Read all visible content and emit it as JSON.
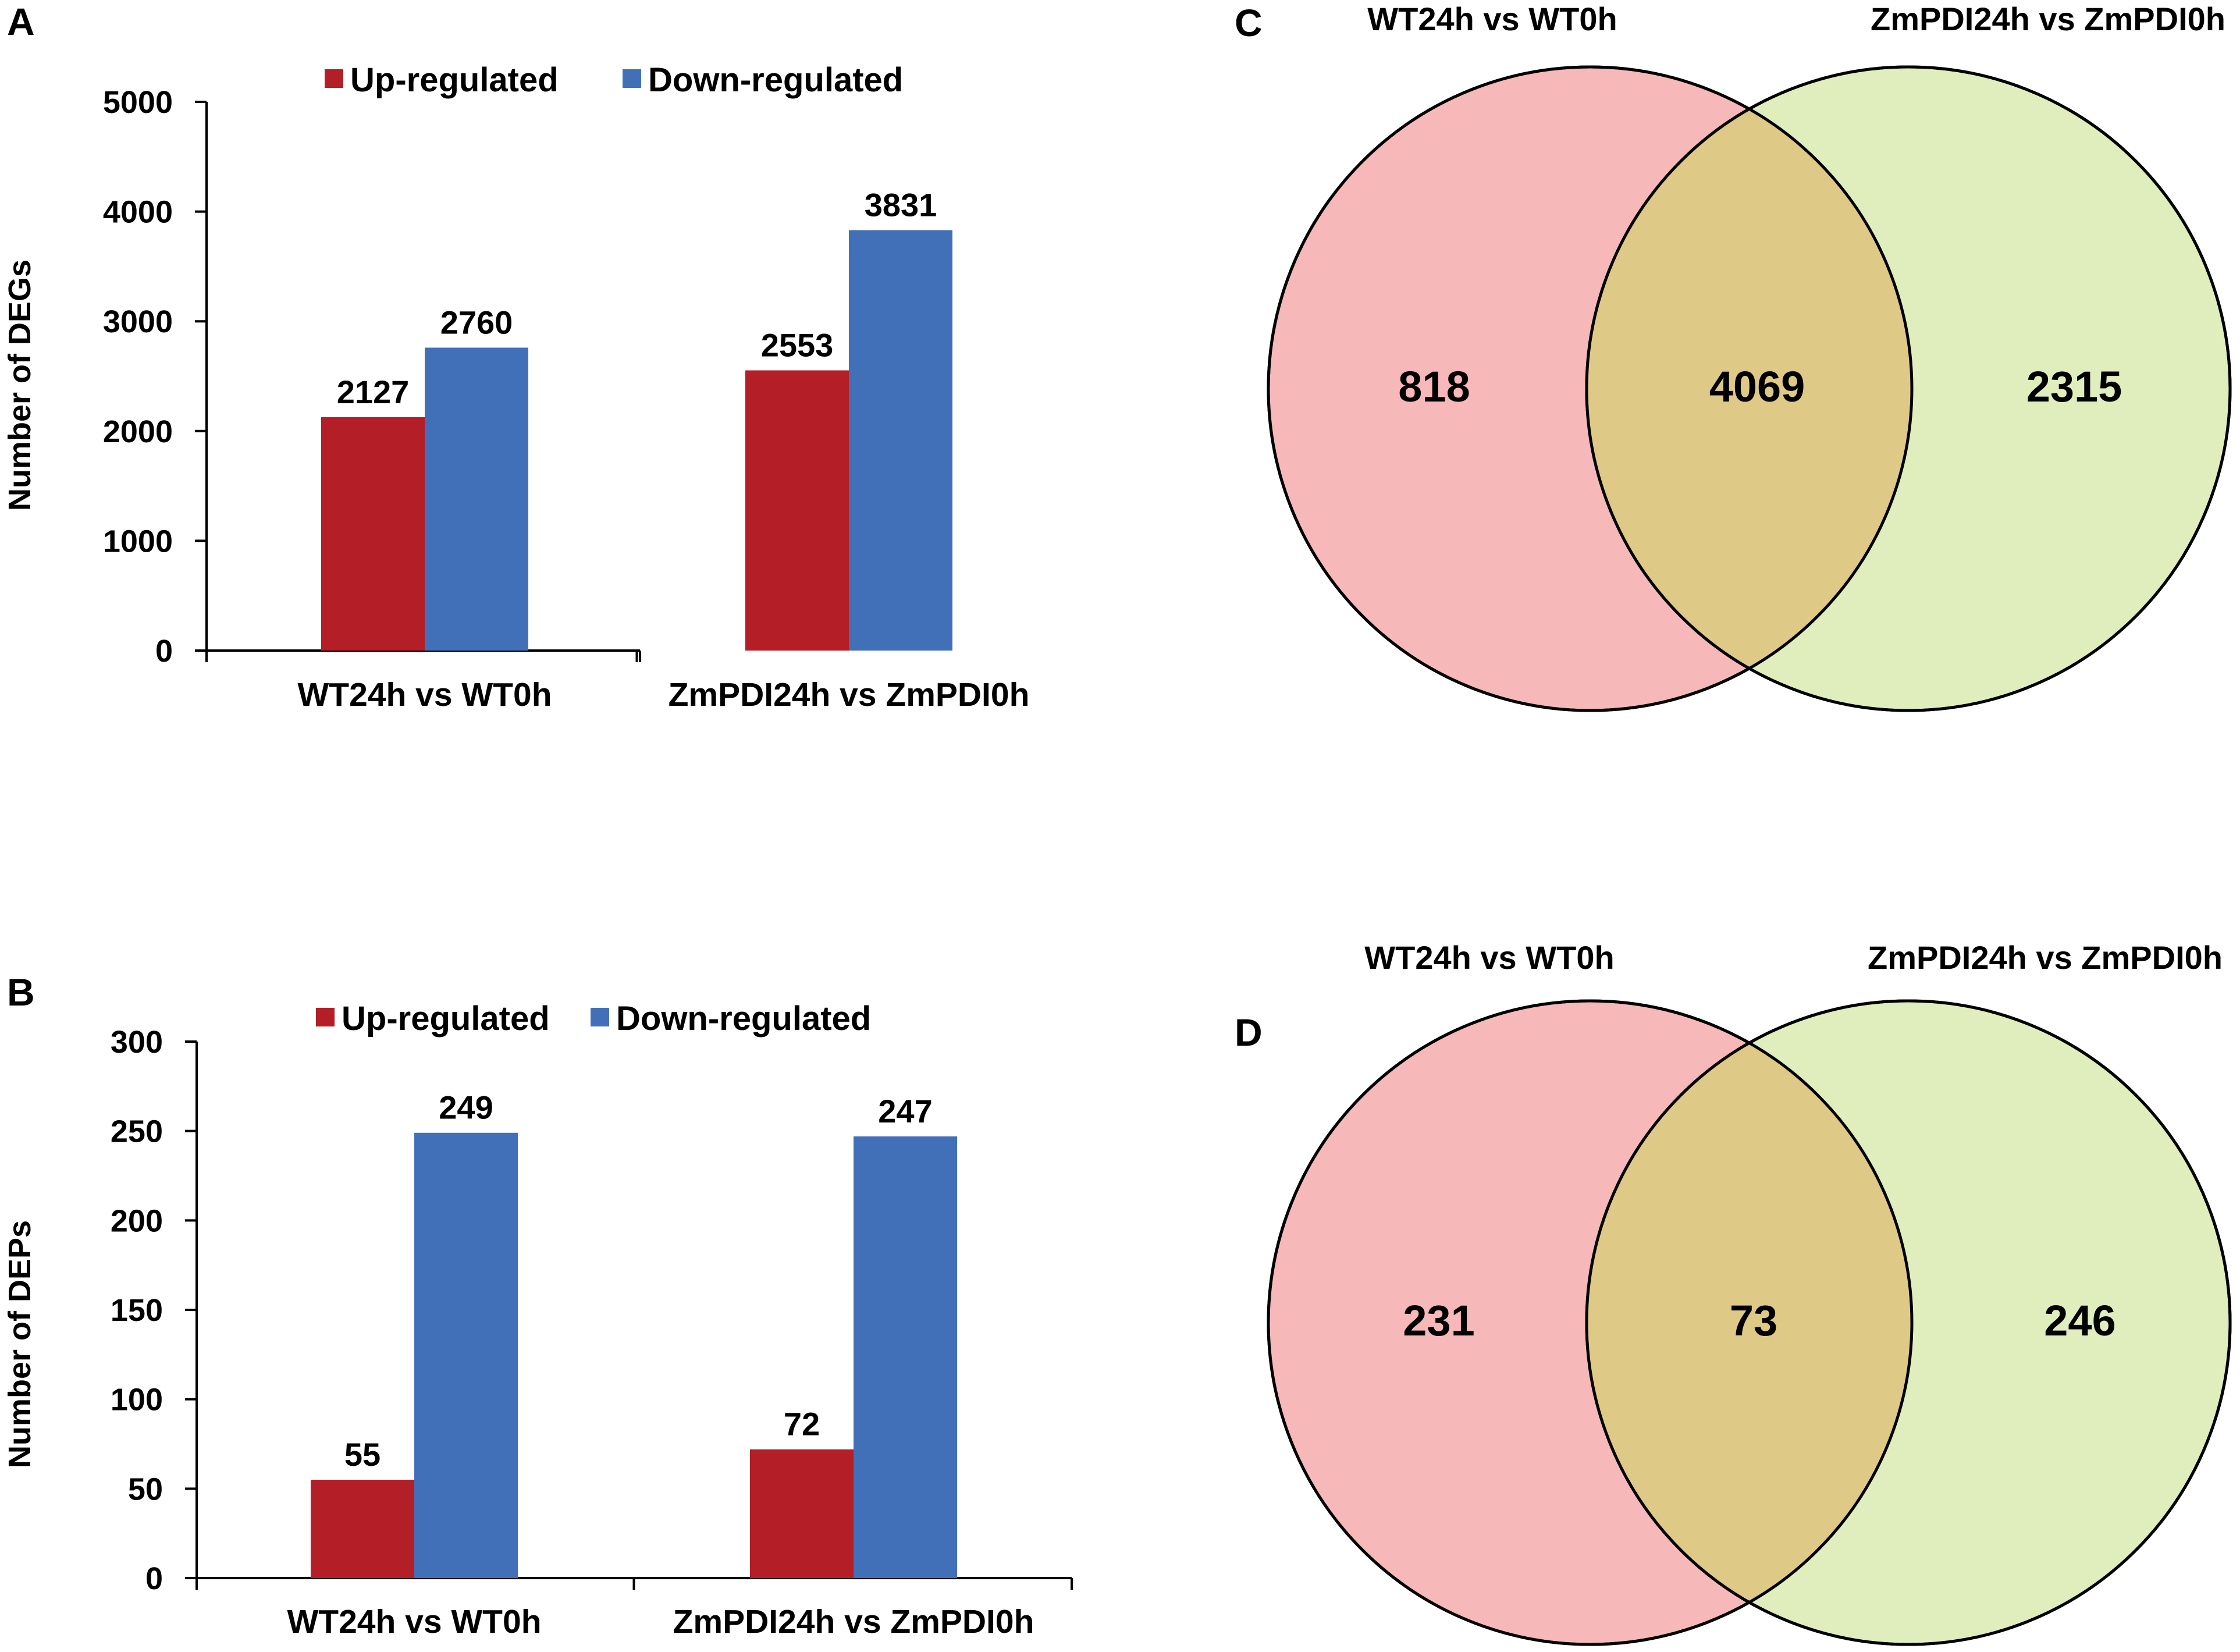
{
  "colors": {
    "up": "#B31E27",
    "down": "#4170B9",
    "venn_left": "#F7B8BA",
    "venn_right": "#E0EDBD",
    "venn_overlap": "#DFC986"
  },
  "chart_data": [
    {
      "panel": "A",
      "type": "bar",
      "title": "",
      "xlabel": "",
      "ylabel": "Number of DEGs",
      "ylim": [
        0,
        5000
      ],
      "yticks": [
        "0",
        "1000",
        "2000",
        "3000",
        "4000",
        "5000"
      ],
      "ytick_values": [
        0,
        1000,
        2000,
        3000,
        4000,
        5000
      ],
      "categories": [
        "WT24h vs WT0h",
        "ZmPDI24h vs ZmPDI0h"
      ],
      "series": [
        {
          "name": "Up-regulated",
          "values": [
            2127,
            2553
          ],
          "labels": [
            "2127",
            "2553"
          ]
        },
        {
          "name": "Down-regulated",
          "values": [
            2760,
            3831
          ],
          "labels": [
            "2760",
            "3831"
          ]
        }
      ],
      "legend": "top"
    },
    {
      "panel": "B",
      "type": "bar",
      "title": "",
      "xlabel": "",
      "ylabel": "Number of DEPs",
      "ylim": [
        0,
        300
      ],
      "yticks": [
        "0",
        "50",
        "100",
        "150",
        "200",
        "250",
        "300"
      ],
      "ytick_values": [
        0,
        50,
        100,
        150,
        200,
        250,
        300
      ],
      "categories": [
        "WT24h vs WT0h",
        "ZmPDI24h vs ZmPDI0h"
      ],
      "series": [
        {
          "name": "Up-regulated",
          "values": [
            55,
            72
          ],
          "labels": [
            "55",
            "72"
          ]
        },
        {
          "name": "Down-regulated",
          "values": [
            249,
            247
          ],
          "labels": [
            "249",
            "247"
          ]
        }
      ],
      "legend": "top"
    },
    {
      "panel": "C",
      "type": "venn",
      "sets": [
        "WT24h vs WT0h",
        "ZmPDI24h vs ZmPDI0h"
      ],
      "only_left": "818",
      "overlap": "4069",
      "only_right": "2315"
    },
    {
      "panel": "D",
      "type": "venn",
      "sets": [
        "WT24h vs WT0h",
        "ZmPDI24h vs ZmPDI0h"
      ],
      "only_left": "231",
      "overlap": "73",
      "only_right": "246"
    }
  ]
}
